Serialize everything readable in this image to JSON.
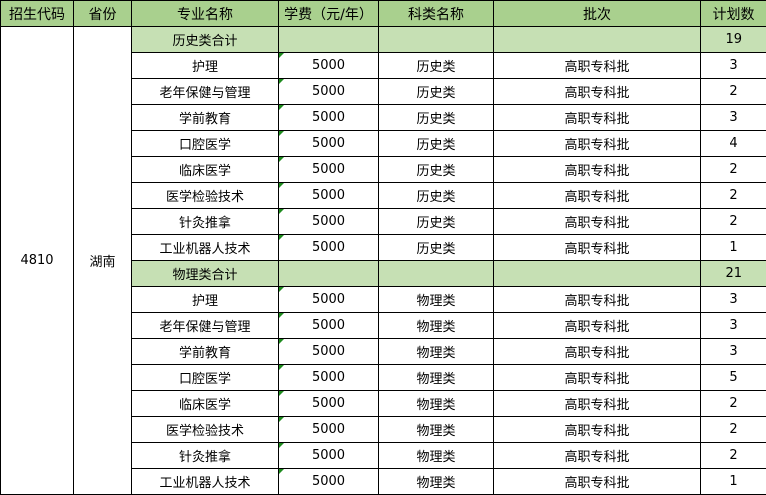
{
  "headers": [
    "招生代码",
    "省份",
    "专业名称",
    "学费（元/年）",
    "科类名称",
    "批次",
    "计划数"
  ],
  "code": "4810",
  "province": "湖南",
  "colors": {
    "header": "#a9d08e",
    "subtotal": "#c6e0b4",
    "fee_marker": "#1e8c1e"
  },
  "groups": [
    {
      "label": "历史类合计",
      "total": "19",
      "rows": [
        [
          "护理",
          "5000",
          "历史类",
          "高职专科批",
          "3"
        ],
        [
          "老年保健与管理",
          "5000",
          "历史类",
          "高职专科批",
          "2"
        ],
        [
          "学前教育",
          "5000",
          "历史类",
          "高职专科批",
          "3"
        ],
        [
          "口腔医学",
          "5000",
          "历史类",
          "高职专科批",
          "4"
        ],
        [
          "临床医学",
          "5000",
          "历史类",
          "高职专科批",
          "2"
        ],
        [
          "医学检验技术",
          "5000",
          "历史类",
          "高职专科批",
          "2"
        ],
        [
          "针灸推拿",
          "5000",
          "历史类",
          "高职专科批",
          "2"
        ],
        [
          "工业机器人技术",
          "5000",
          "历史类",
          "高职专科批",
          "1"
        ]
      ]
    },
    {
      "label": "物理类合计",
      "total": "21",
      "rows": [
        [
          "护理",
          "5000",
          "物理类",
          "高职专科批",
          "3"
        ],
        [
          "老年保健与管理",
          "5000",
          "物理类",
          "高职专科批",
          "3"
        ],
        [
          "学前教育",
          "5000",
          "物理类",
          "高职专科批",
          "3"
        ],
        [
          "口腔医学",
          "5000",
          "物理类",
          "高职专科批",
          "5"
        ],
        [
          "临床医学",
          "5000",
          "物理类",
          "高职专科批",
          "2"
        ],
        [
          "医学检验技术",
          "5000",
          "物理类",
          "高职专科批",
          "2"
        ],
        [
          "针灸推拿",
          "5000",
          "物理类",
          "高职专科批",
          "2"
        ],
        [
          "工业机器人技术",
          "5000",
          "物理类",
          "高职专科批",
          "1"
        ]
      ]
    }
  ]
}
